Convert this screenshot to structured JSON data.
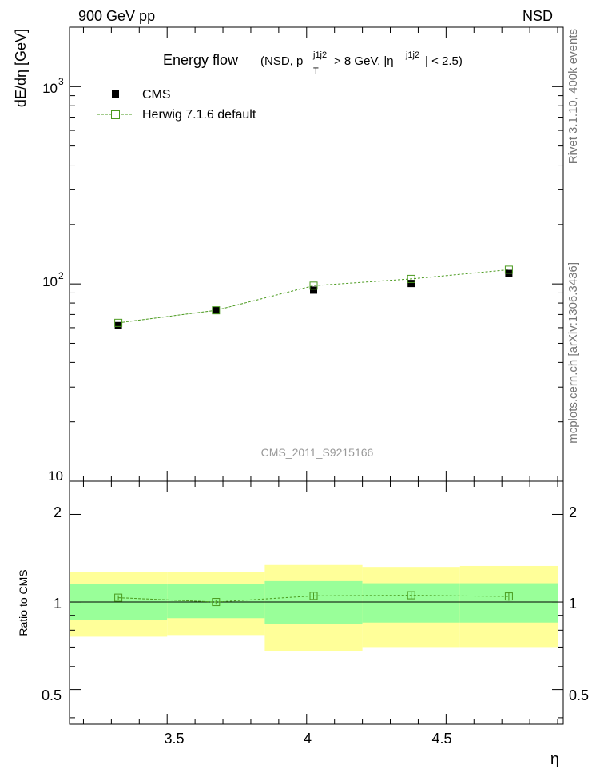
{
  "header": {
    "left_label": "900 GeV pp",
    "right_label": "NSD"
  },
  "side_labels": {
    "rivet": "Rivet 3.1.10,  400k events",
    "mcplots": "mcplots.cern.ch [arXiv:1306.3436]"
  },
  "chart_data": [
    {
      "type": "scatter",
      "title": {
        "main": "Energy flow",
        "open": "(NSD, p",
        "pt_sup": "j1j2",
        "pt_sub": "T",
        "mid": " > 8 GeV, |η",
        "eta_sup": "j1j2",
        "close": "| < 2.5)"
      },
      "ylabel": "dE/dη [GeV]",
      "yscale": "log",
      "ylim": [
        10,
        2000
      ],
      "y_tick_labels": [
        {
          "value": 10,
          "label": "10"
        },
        {
          "value": 100,
          "label": "10",
          "sup": "2"
        },
        {
          "value": 1000,
          "label": "10",
          "sup": "3"
        }
      ],
      "watermark": "CMS_2011_S9215166",
      "legend": {
        "position": "top-left",
        "entries": [
          {
            "name": "CMS",
            "marker": "filled-square"
          },
          {
            "name": "Herwig 7.1.6 default",
            "marker": "open-square-dashed"
          }
        ]
      },
      "x": [
        3.325,
        3.675,
        4.025,
        4.375,
        4.725
      ],
      "series": [
        {
          "name": "CMS",
          "values": [
            61.5,
            73.5,
            93.0,
            100.5,
            113.0
          ],
          "color": "#000000"
        },
        {
          "name": "Herwig 7.1.6 default",
          "values": [
            63.5,
            73.5,
            98.0,
            106.0,
            118.0
          ],
          "color": "#4a9a1e"
        }
      ]
    },
    {
      "type": "scatter",
      "ylabel": "Ratio to CMS",
      "xlabel": "η",
      "xlim": [
        3.15,
        4.92
      ],
      "ylim": [
        0.38,
        2.6
      ],
      "yscale": "log",
      "y_tick_labels": [
        {
          "value": 0.5,
          "label": "0.5"
        },
        {
          "value": 1,
          "label": "1"
        },
        {
          "value": 2,
          "label": "2"
        }
      ],
      "x_tick_labels": [
        {
          "value": 3.5,
          "label": "3.5"
        },
        {
          "value": 4,
          "label": "4"
        },
        {
          "value": 4.5,
          "label": "4.5"
        }
      ],
      "bins": [
        {
          "lo": 3.15,
          "hi": 3.5,
          "green": [
            0.87,
            1.15
          ],
          "yellow": [
            0.76,
            1.27
          ]
        },
        {
          "lo": 3.5,
          "hi": 3.85,
          "green": [
            0.88,
            1.15
          ],
          "yellow": [
            0.77,
            1.27
          ]
        },
        {
          "lo": 3.85,
          "hi": 4.2,
          "green": [
            0.84,
            1.18
          ],
          "yellow": [
            0.68,
            1.34
          ]
        },
        {
          "lo": 4.2,
          "hi": 4.55,
          "green": [
            0.85,
            1.16
          ],
          "yellow": [
            0.7,
            1.32
          ]
        },
        {
          "lo": 4.55,
          "hi": 4.9,
          "green": [
            0.85,
            1.16
          ],
          "yellow": [
            0.7,
            1.33
          ]
        }
      ],
      "series": [
        {
          "name": "Herwig 7.1.6 default",
          "values": [
            1.035,
            1.0,
            1.05,
            1.055,
            1.045
          ],
          "errors": [
            0.02,
            0.02,
            0.025,
            0.03,
            0.035
          ],
          "color": "#4a9a1e"
        }
      ],
      "colors": {
        "green_band": "#99ff99",
        "yellow_band": "#ffff99",
        "line": "#000000"
      }
    }
  ]
}
